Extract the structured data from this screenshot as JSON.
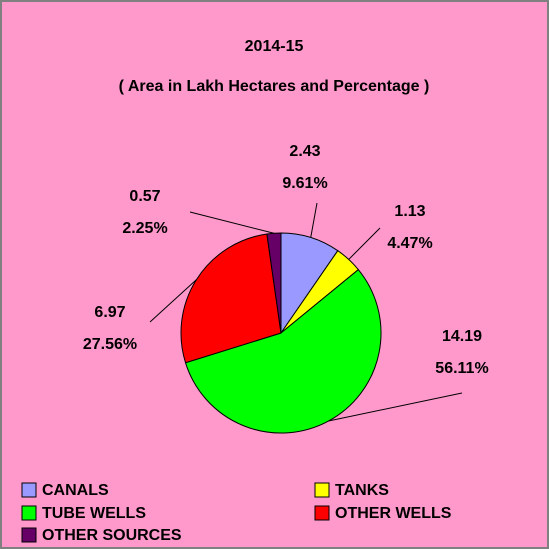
{
  "chart_data": {
    "type": "pie",
    "title": "2014-15",
    "subtitle": "( Area in Lakh Hectares and Percentage )",
    "categories": [
      "CANALS",
      "TANKS",
      "TUBE WELLS",
      "OTHER WELLS",
      "OTHER SOURCES"
    ],
    "values": [
      2.43,
      1.13,
      14.19,
      6.97,
      0.57
    ],
    "percent_labels": [
      "9.61%",
      "4.47%",
      "56.11%",
      "27.56%",
      "2.25%"
    ],
    "colors": [
      "#9999ff",
      "#ffff00",
      "#00ff00",
      "#ff0000",
      "#660066"
    ]
  }
}
